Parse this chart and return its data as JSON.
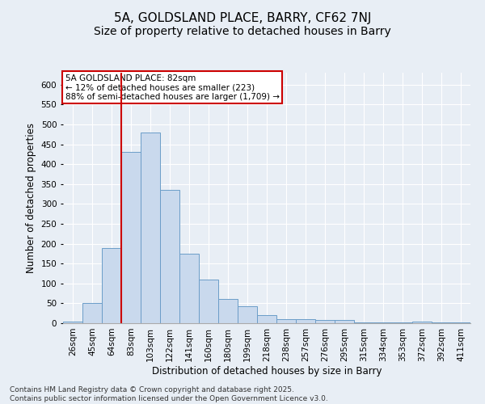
{
  "title1": "5A, GOLDSLAND PLACE, BARRY, CF62 7NJ",
  "title2": "Size of property relative to detached houses in Barry",
  "xlabel": "Distribution of detached houses by size in Barry",
  "ylabel": "Number of detached properties",
  "categories": [
    "26sqm",
    "45sqm",
    "64sqm",
    "83sqm",
    "103sqm",
    "122sqm",
    "141sqm",
    "160sqm",
    "180sqm",
    "199sqm",
    "218sqm",
    "238sqm",
    "257sqm",
    "276sqm",
    "295sqm",
    "315sqm",
    "334sqm",
    "353sqm",
    "372sqm",
    "392sqm",
    "411sqm"
  ],
  "values": [
    5,
    50,
    190,
    430,
    480,
    335,
    175,
    110,
    60,
    43,
    20,
    10,
    10,
    8,
    8,
    3,
    2,
    2,
    5,
    2,
    2
  ],
  "bar_color": "#c9d9ed",
  "bar_edge_color": "#6b9dc8",
  "vline_x_index": 3,
  "annotation_text_line1": "5A GOLDSLAND PLACE: 82sqm",
  "annotation_text_line2": "← 12% of detached houses are smaller (223)",
  "annotation_text_line3": "88% of semi-detached houses are larger (1,709) →",
  "annotation_box_color": "#ffffff",
  "annotation_box_edge_color": "#cc0000",
  "vline_color": "#cc0000",
  "ylim": [
    0,
    630
  ],
  "yticks": [
    0,
    50,
    100,
    150,
    200,
    250,
    300,
    350,
    400,
    450,
    500,
    550,
    600
  ],
  "background_color": "#e8eef5",
  "footer": "Contains HM Land Registry data © Crown copyright and database right 2025.\nContains public sector information licensed under the Open Government Licence v3.0.",
  "title_fontsize": 11,
  "subtitle_fontsize": 10,
  "axis_label_fontsize": 8.5,
  "tick_fontsize": 7.5,
  "footer_fontsize": 6.5,
  "annotation_fontsize": 7.5
}
